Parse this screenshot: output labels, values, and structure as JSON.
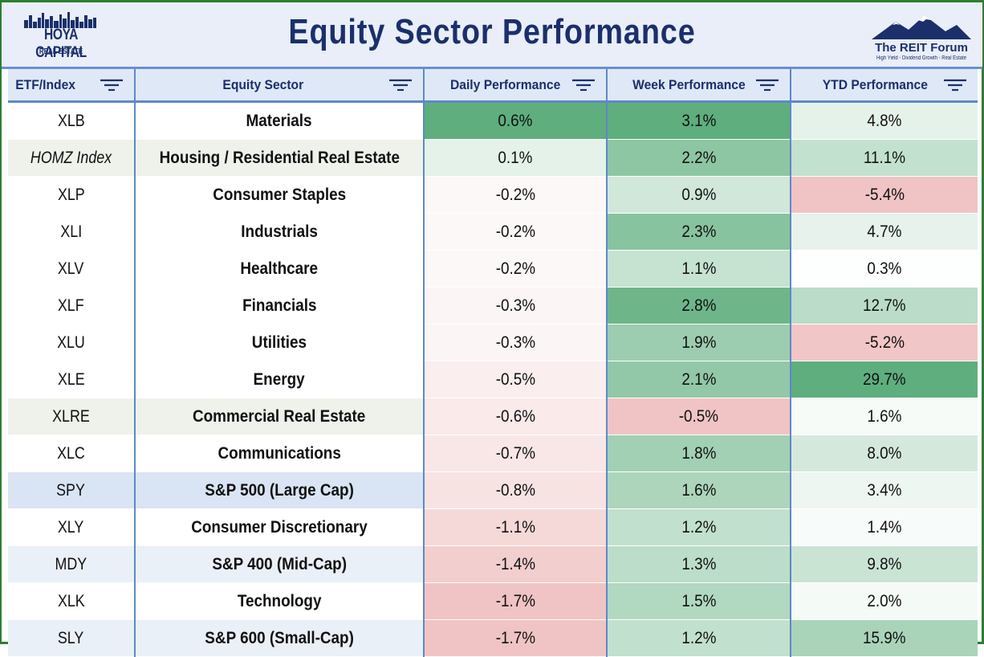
{
  "header": {
    "title": "Equity Sector Performance",
    "logo_left": {
      "brand": "HOYA CAPITAL",
      "sub": "REAL ESTATE"
    },
    "logo_right": {
      "brand": "The REIT Forum",
      "tagline": "High Yield - Dividend Growth - Real Estate"
    }
  },
  "columns": [
    "ETF/Index",
    "Equity Sector",
    "Daily Performance",
    "Week Performance",
    "YTD Performance"
  ],
  "column_icons": [
    "filter-icon",
    "filter-icon",
    "filter-icon",
    "filter-icon",
    "filter-icon"
  ],
  "rows": [
    {
      "etf": "XLB",
      "sector": "Materials",
      "daily": "0.6%",
      "week": "3.1%",
      "ytd": "4.8%"
    },
    {
      "etf": "HOMZ Index",
      "sector": "Housing / Residential Real Estate",
      "daily": "0.1%",
      "week": "2.2%",
      "ytd": "11.1%"
    },
    {
      "etf": "XLP",
      "sector": "Consumer Staples",
      "daily": "-0.2%",
      "week": "0.9%",
      "ytd": "-5.4%"
    },
    {
      "etf": "XLI",
      "sector": "Industrials",
      "daily": "-0.2%",
      "week": "2.3%",
      "ytd": "4.7%"
    },
    {
      "etf": "XLV",
      "sector": "Healthcare",
      "daily": "-0.2%",
      "week": "1.1%",
      "ytd": "0.3%"
    },
    {
      "etf": "XLF",
      "sector": "Financials",
      "daily": "-0.3%",
      "week": "2.8%",
      "ytd": "12.7%"
    },
    {
      "etf": "XLU",
      "sector": "Utilities",
      "daily": "-0.3%",
      "week": "1.9%",
      "ytd": "-5.2%"
    },
    {
      "etf": "XLE",
      "sector": "Energy",
      "daily": "-0.5%",
      "week": "2.1%",
      "ytd": "29.7%"
    },
    {
      "etf": "XLRE",
      "sector": "Commercial Real Estate",
      "daily": "-0.6%",
      "week": "-0.5%",
      "ytd": "1.6%"
    },
    {
      "etf": "XLC",
      "sector": "Communications",
      "daily": "-0.7%",
      "week": "1.8%",
      "ytd": "8.0%"
    },
    {
      "etf": "SPY",
      "sector": "S&P 500 (Large Cap)",
      "daily": "-0.8%",
      "week": "1.6%",
      "ytd": "3.4%"
    },
    {
      "etf": "XLY",
      "sector": "Consumer Discretionary",
      "daily": "-1.1%",
      "week": "1.2%",
      "ytd": "1.4%"
    },
    {
      "etf": "MDY",
      "sector": "S&P 400 (Mid-Cap)",
      "daily": "-1.4%",
      "week": "1.3%",
      "ytd": "9.8%"
    },
    {
      "etf": "XLK",
      "sector": "Technology",
      "daily": "-1.7%",
      "week": "1.5%",
      "ytd": "2.0%"
    },
    {
      "etf": "SLY",
      "sector": "S&P 600 (Small-Cap)",
      "daily": "-1.7%",
      "week": "1.2%",
      "ytd": "15.9%"
    }
  ],
  "colors": {
    "title": "#1b2f6b",
    "header_bg": "#dfe8f7",
    "grid_line": "#5f88c9",
    "frame": "#2e7d32",
    "highlight_residential": "#eef2ea",
    "highlight_commercial": "#eef2ea",
    "highlight_spy": "#d9e4f4",
    "highlight_small_mid": "#eaf0f7"
  }
}
